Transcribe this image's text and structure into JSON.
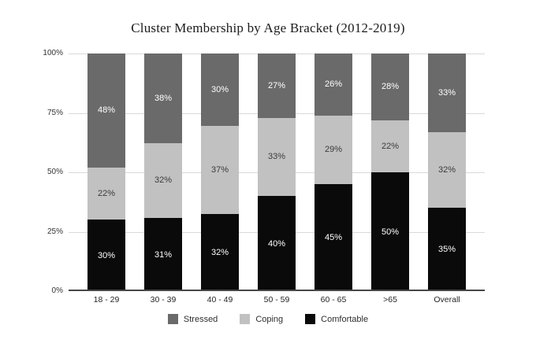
{
  "title": "Cluster Membership by Age Bracket (2012-2019)",
  "chart_data": {
    "type": "bar",
    "stacked": true,
    "title": "Cluster Membership by Age Bracket (2012-2019)",
    "categories": [
      "18 - 29",
      "30 - 39",
      "40 - 49",
      "50 - 59",
      "60 - 65",
      ">65",
      "Overall"
    ],
    "series": [
      {
        "name": "Stressed",
        "color": "#6a6a6a",
        "label_color": "#ffffff",
        "values": [
          48,
          38,
          30,
          27,
          26,
          28,
          33
        ]
      },
      {
        "name": "Coping",
        "color": "#c1c1c1",
        "label_color": "#3b3b3b",
        "values": [
          22,
          32,
          37,
          33,
          29,
          22,
          32
        ]
      },
      {
        "name": "Comfortable",
        "color": "#0a0a0a",
        "label_color": "#ffffff",
        "values": [
          30,
          31,
          32,
          40,
          45,
          50,
          35
        ]
      }
    ],
    "stack_order_bottom_to_top": [
      "Comfortable",
      "Coping",
      "Stressed"
    ],
    "value_suffix": "%",
    "y_ticks": [
      "0%",
      "25%",
      "50%",
      "75%",
      "100%"
    ],
    "y_tick_values": [
      0,
      25,
      50,
      75,
      100
    ],
    "ylim": [
      0,
      100
    ],
    "grid": true,
    "gridline_color": "#d9d9d9",
    "axis_line_color": "#474747",
    "legend_position": "bottom",
    "legend_order": [
      "Stressed",
      "Coping",
      "Comfortable"
    ]
  }
}
